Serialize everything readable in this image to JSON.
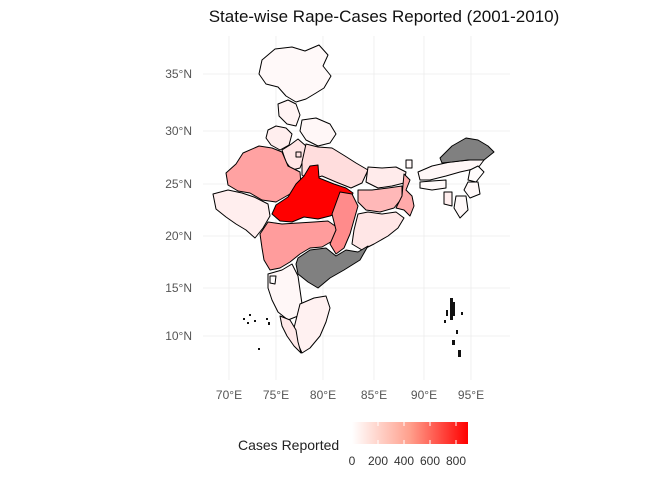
{
  "title": "State-wise Rape-Cases Reported (2001-2010)",
  "map": {
    "lat_ticks": [
      "35°N",
      "30°N",
      "25°N",
      "20°N",
      "15°N",
      "10°N"
    ],
    "lon_ticks": [
      "70°E",
      "75°E",
      "80°E",
      "85°E",
      "90°E",
      "95°E"
    ],
    "na_color": "#808080",
    "regions": [
      {
        "name": "Jammu & Kashmir",
        "value": 20
      },
      {
        "name": "Himachal Pradesh",
        "value": 40
      },
      {
        "name": "Punjab",
        "value": 60
      },
      {
        "name": "Uttarakhand",
        "value": 30
      },
      {
        "name": "Haryana",
        "value": 90
      },
      {
        "name": "Delhi",
        "value": 100
      },
      {
        "name": "Rajasthan",
        "value": 330
      },
      {
        "name": "Uttar Pradesh",
        "value": 120
      },
      {
        "name": "Bihar",
        "value": 70
      },
      {
        "name": "Madhya Pradesh",
        "value": 900
      },
      {
        "name": "Gujarat",
        "value": 60
      },
      {
        "name": "Maharashtra",
        "value": 350
      },
      {
        "name": "Chhattisgarh",
        "value": 410
      },
      {
        "name": "Jharkhand",
        "value": 250
      },
      {
        "name": "West Bengal",
        "value": 300
      },
      {
        "name": "Odisha",
        "value": 90
      },
      {
        "name": "Andhra Pradesh",
        "value": null
      },
      {
        "name": "Karnataka",
        "value": 30
      },
      {
        "name": "Tamil Nadu",
        "value": 50
      },
      {
        "name": "Kerala",
        "value": 80
      },
      {
        "name": "Goa",
        "value": 10
      },
      {
        "name": "Sikkim",
        "value": 20
      },
      {
        "name": "Assam",
        "value": 30
      },
      {
        "name": "Arunachal Pradesh",
        "value": null
      },
      {
        "name": "Nagaland",
        "value": 10
      },
      {
        "name": "Manipur",
        "value": 20
      },
      {
        "name": "Mizoram",
        "value": 20
      },
      {
        "name": "Tripura",
        "value": 60
      },
      {
        "name": "Meghalaya",
        "value": 20
      }
    ]
  },
  "legend": {
    "title": "Cases Reported",
    "ticks": [
      "0",
      "200",
      "400",
      "600",
      "800"
    ],
    "low_color": "#ffffff",
    "high_color": "#ff0000",
    "max": 900
  }
}
